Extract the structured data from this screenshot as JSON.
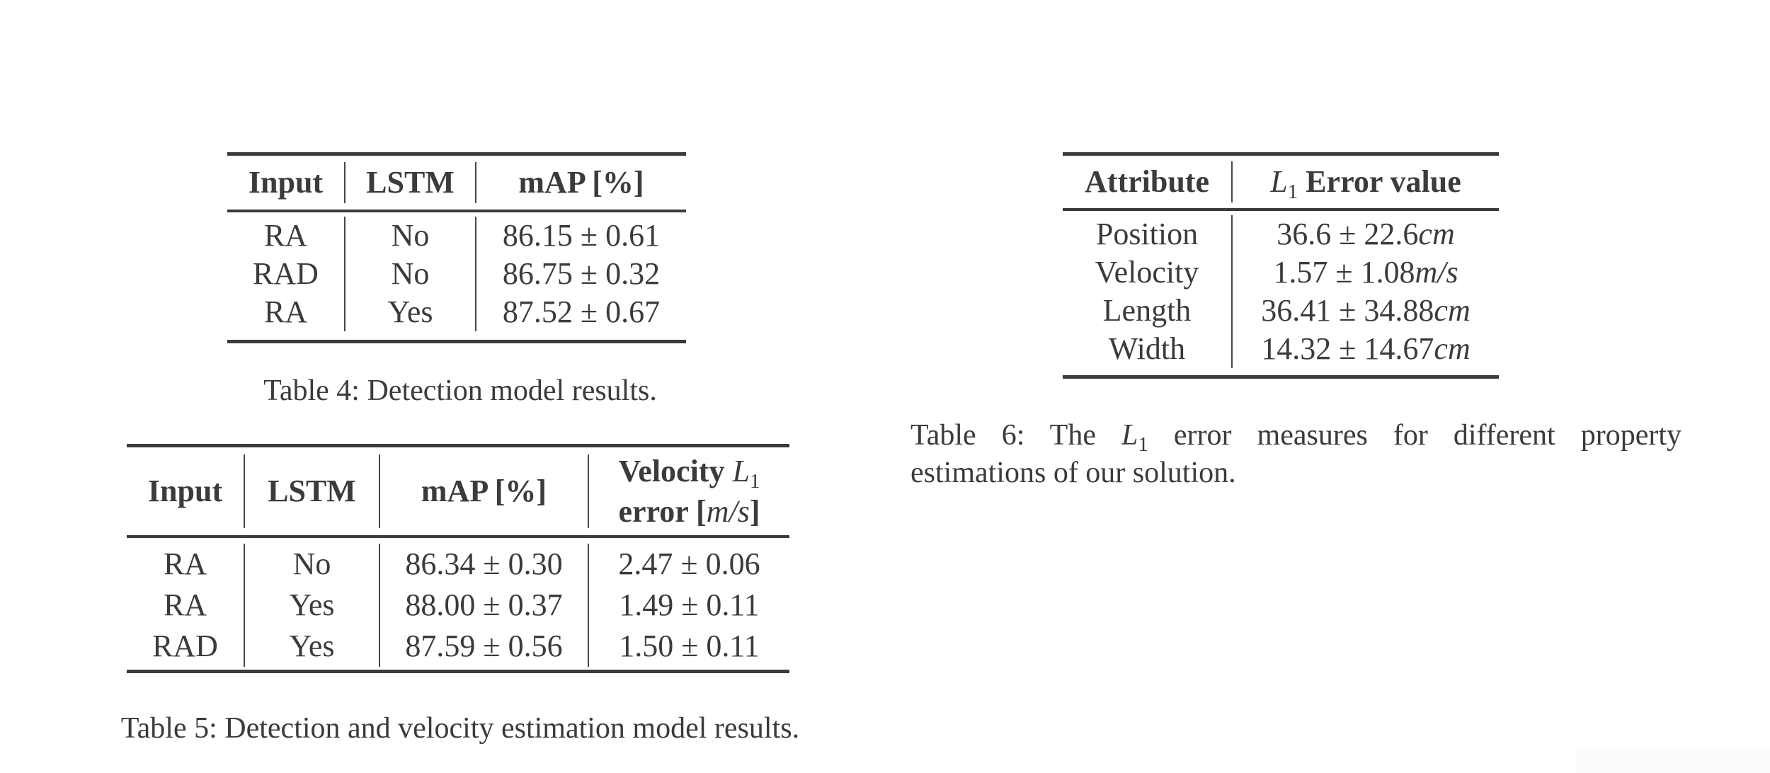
{
  "page": {
    "background": "#ffffff",
    "text_color": "#3b3b3b",
    "rule_color": "#3b3b3b",
    "artifact_color": "#fcfcfd"
  },
  "table4": {
    "headers": [
      "Input",
      "LSTM",
      "mAP [%]"
    ],
    "rows": [
      [
        "RA",
        "No",
        "86.15 ± 0.61"
      ],
      [
        "RAD",
        "No",
        "86.75 ± 0.32"
      ],
      [
        "RA",
        "Yes",
        "87.52 ± 0.67"
      ]
    ],
    "caption": "Table 4: Detection model results."
  },
  "table5": {
    "headers": [
      "Input",
      "LSTM",
      "mAP [%]"
    ],
    "velocity_header": {
      "line1_label": "Velocity ",
      "line1_math": "L",
      "line1_sub": "1",
      "line2_pre": "error [",
      "line2_math": "m/s",
      "line2_post": "]"
    },
    "rows": [
      [
        "RA",
        "No",
        "86.34 ± 0.30",
        "2.47 ± 0.06"
      ],
      [
        "RA",
        "Yes",
        "88.00 ± 0.37",
        "1.49 ± 0.11"
      ],
      [
        "RAD",
        "Yes",
        "87.59 ± 0.56",
        "1.50 ± 0.11"
      ]
    ],
    "caption": "Table 5: Detection and velocity estimation model results."
  },
  "table6": {
    "attribute_header": "Attribute",
    "error_header": {
      "math": "L",
      "sub": "1",
      "label": " Error value"
    },
    "rows": [
      {
        "attribute": "Position",
        "value": "36.6 ± 22.6",
        "unit": "cm"
      },
      {
        "attribute": "Velocity",
        "value": "1.57 ± 1.08",
        "unit": "m/s"
      },
      {
        "attribute": "Length",
        "value": "36.41 ± 34.88",
        "unit": "cm"
      },
      {
        "attribute": "Width",
        "value": "14.32 ± 14.67",
        "unit": "cm"
      }
    ],
    "caption": {
      "line1_pre": "Table 6: The ",
      "math": "L",
      "sub": "1",
      "line1_post": " error measures for different property",
      "line2": "estimations of our solution."
    }
  }
}
